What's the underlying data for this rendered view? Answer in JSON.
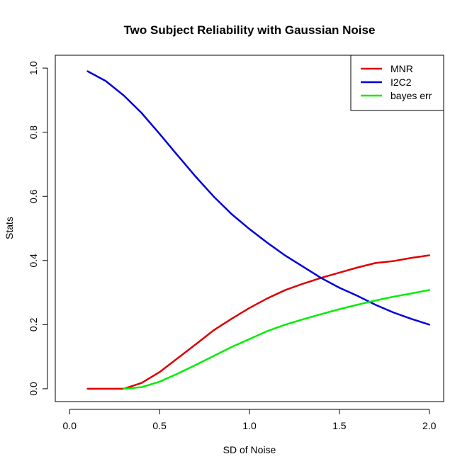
{
  "chart_data": {
    "type": "line",
    "title": "Two Subject Reliability with Gaussian Noise",
    "xlabel": "SD of Noise",
    "ylabel": "Stats",
    "xlim": [
      -0.08,
      2.08
    ],
    "ylim": [
      -0.04,
      1.04
    ],
    "xticks": [
      "0.0",
      "0.5",
      "1.0",
      "1.5",
      "2.0"
    ],
    "yticks": [
      "0.0",
      "0.2",
      "0.4",
      "0.6",
      "0.8",
      "1.0"
    ],
    "grid": false,
    "legend_position": "top-right",
    "x": [
      0.1,
      0.2,
      0.3,
      0.4,
      0.5,
      0.6,
      0.7,
      0.8,
      0.9,
      1.0,
      1.1,
      1.2,
      1.3,
      1.4,
      1.5,
      1.6,
      1.7,
      1.8,
      1.9,
      2.0
    ],
    "series": [
      {
        "name": "MNR",
        "color": "#dd0000",
        "values": [
          0.0,
          0.0,
          0.0,
          0.018,
          0.052,
          0.095,
          0.138,
          0.182,
          0.218,
          0.252,
          0.282,
          0.308,
          0.328,
          0.346,
          0.362,
          0.378,
          0.392,
          0.398,
          0.408,
          0.416
        ]
      },
      {
        "name": "I2C2",
        "color": "#0000dd",
        "values": [
          0.99,
          0.96,
          0.915,
          0.86,
          0.795,
          0.728,
          0.662,
          0.6,
          0.545,
          0.498,
          0.455,
          0.415,
          0.38,
          0.345,
          0.315,
          0.29,
          0.262,
          0.238,
          0.218,
          0.2
        ]
      },
      {
        "name": "bayes err",
        "color": "#00ee00",
        "values": [
          null,
          null,
          0.0,
          0.005,
          0.022,
          0.047,
          0.074,
          0.102,
          0.13,
          0.155,
          0.18,
          0.2,
          0.217,
          0.233,
          0.248,
          0.262,
          0.275,
          0.287,
          0.297,
          0.308
        ]
      }
    ]
  }
}
